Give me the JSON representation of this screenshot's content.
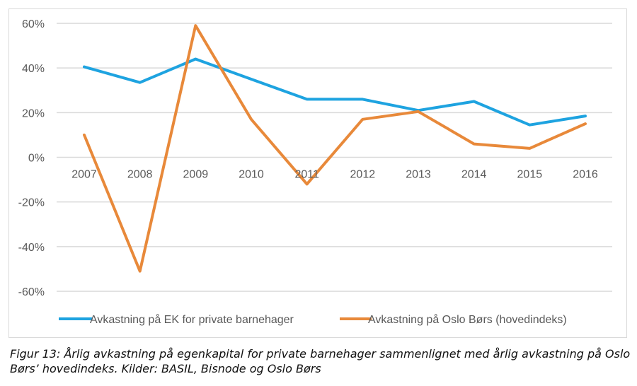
{
  "chart_data": {
    "type": "line",
    "categories": [
      "2007",
      "2008",
      "2009",
      "2010",
      "2011",
      "2012",
      "2013",
      "2014",
      "2015",
      "2016"
    ],
    "y_ticks": [
      "60%",
      "40%",
      "20%",
      "0%",
      "-20%",
      "-40%",
      "-60%"
    ],
    "ylim": [
      -60,
      60
    ],
    "grid": true,
    "legend_position": "bottom",
    "series": [
      {
        "name": "Avkastning på EK for private barnehager",
        "color": "#1ea3e0",
        "values": [
          40.5,
          33.5,
          44,
          35,
          26,
          26,
          21,
          25,
          14.5,
          18.5
        ]
      },
      {
        "name": "Avkastning på Oslo Børs (hovedindeks)",
        "color": "#e8893a",
        "values": [
          10,
          -51,
          59,
          17,
          -12,
          17,
          20.5,
          6,
          4,
          15
        ]
      }
    ]
  },
  "caption": "Figur 13: Årlig avkastning på egenkapital for private barnehager sammenlignet med årlig avkastning på Oslo Børs’ hovedindeks. Kilder: BASIL, Bisnode og Oslo Børs"
}
